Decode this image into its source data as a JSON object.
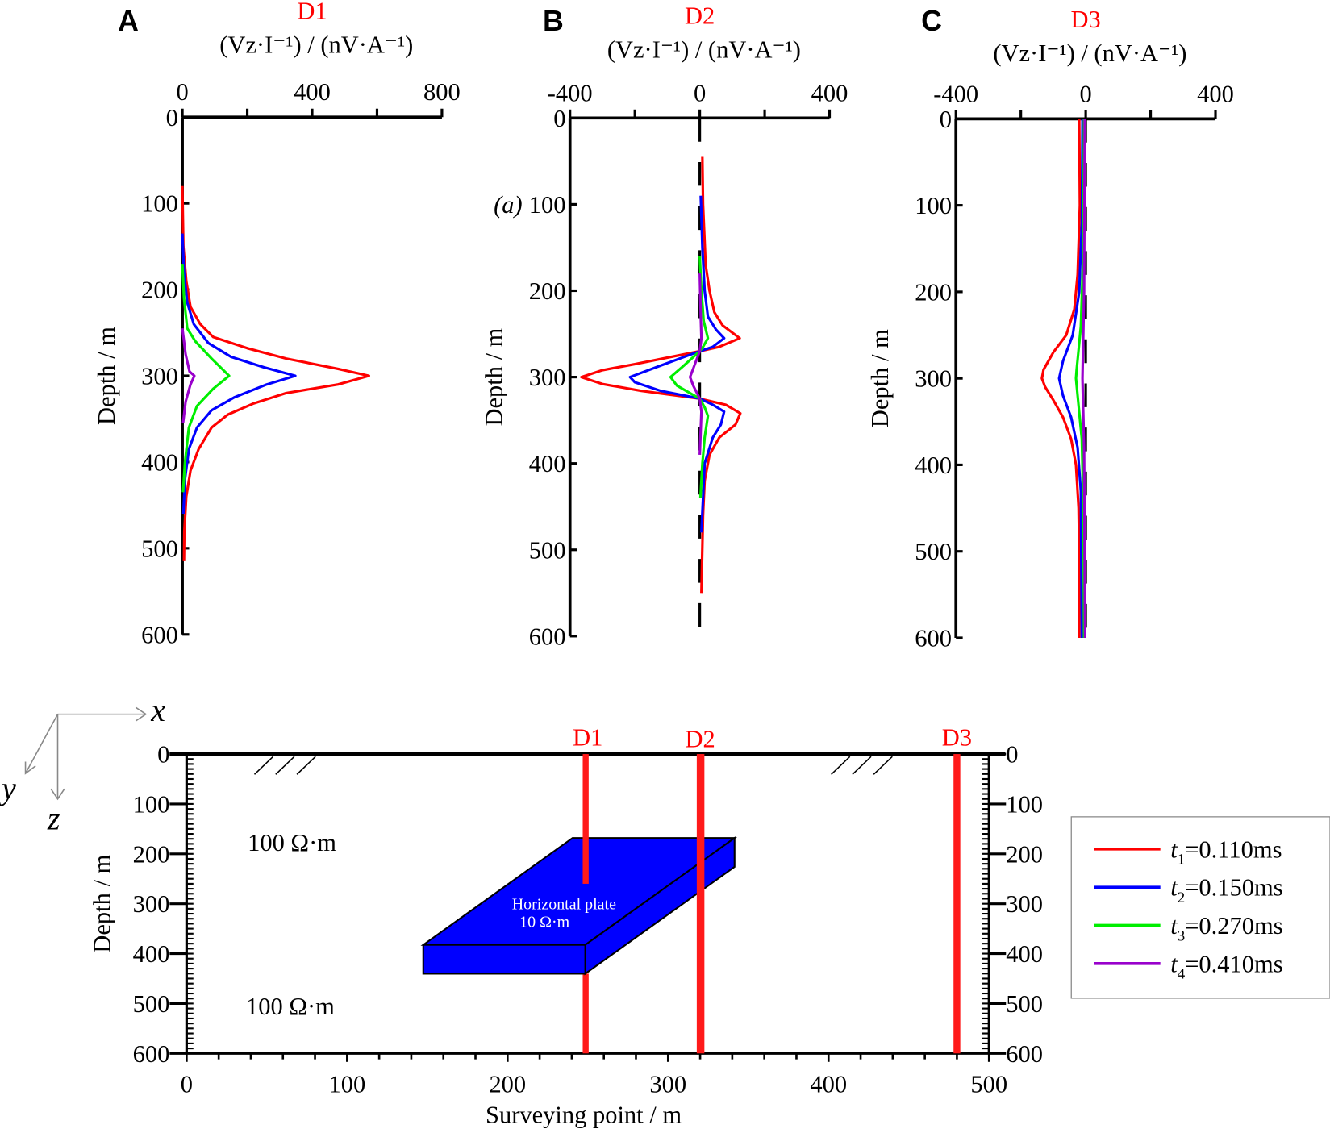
{
  "chart_data": [
    {
      "type": "line",
      "panel": "A",
      "title": "D1",
      "xlabel": "(Vz·I⁻¹) / (nV·A⁻¹)",
      "ylabel": "Depth / m",
      "xlim": [
        0,
        800
      ],
      "ylim": [
        0,
        600
      ],
      "xticks": [
        "0",
        "400",
        "800"
      ],
      "yticks": [
        "0",
        "100",
        "200",
        "300",
        "400",
        "500",
        "600"
      ],
      "zero_line": false,
      "series": [
        {
          "name": "t1=0.110ms",
          "color": "#ff0000",
          "points": [
            [
              0,
              80
            ],
            [
              3,
              150
            ],
            [
              12,
              190
            ],
            [
              25,
              220
            ],
            [
              55,
              240
            ],
            [
              95,
              255
            ],
            [
              200,
              268
            ],
            [
              320,
              280
            ],
            [
              480,
              292
            ],
            [
              575,
              300
            ],
            [
              480,
              310
            ],
            [
              320,
              320
            ],
            [
              220,
              332
            ],
            [
              140,
              345
            ],
            [
              90,
              360
            ],
            [
              50,
              385
            ],
            [
              25,
              410
            ],
            [
              12,
              440
            ],
            [
              6,
              480
            ],
            [
              5,
              515
            ]
          ]
        },
        {
          "name": "t2=0.150ms",
          "color": "#0000ff",
          "points": [
            [
              0,
              135
            ],
            [
              5,
              180
            ],
            [
              15,
              215
            ],
            [
              35,
              240
            ],
            [
              80,
              262
            ],
            [
              150,
              278
            ],
            [
              250,
              290
            ],
            [
              348,
              300
            ],
            [
              260,
              310
            ],
            [
              160,
              325
            ],
            [
              90,
              340
            ],
            [
              45,
              360
            ],
            [
              20,
              385
            ],
            [
              8,
              420
            ],
            [
              3,
              460
            ]
          ]
        },
        {
          "name": "t3=0.270ms",
          "color": "#00ee00",
          "points": [
            [
              0,
              170
            ],
            [
              5,
              210
            ],
            [
              15,
              245
            ],
            [
              40,
              260
            ],
            [
              90,
              280
            ],
            [
              144,
              300
            ],
            [
              95,
              315
            ],
            [
              45,
              335
            ],
            [
              20,
              360
            ],
            [
              8,
              400
            ],
            [
              2,
              435
            ]
          ]
        },
        {
          "name": "t4=0.410ms",
          "color": "#9900cc",
          "points": [
            [
              0,
              245
            ],
            [
              10,
              275
            ],
            [
              22,
              295
            ],
            [
              37,
              300
            ],
            [
              25,
              310
            ],
            [
              10,
              330
            ],
            [
              2,
              355
            ]
          ]
        }
      ]
    },
    {
      "type": "line",
      "panel": "B",
      "title": "D2",
      "xlabel": "(Vz·I⁻¹) / (nV·A⁻¹)",
      "ylabel": "Depth / m",
      "xlim": [
        -400,
        400
      ],
      "ylim": [
        0,
        600
      ],
      "xticks": [
        "-400",
        "0",
        "400"
      ],
      "yticks": [
        "0",
        "100",
        "200",
        "300",
        "400",
        "500",
        "600"
      ],
      "zero_line": true,
      "annotation": "(a)",
      "series": [
        {
          "name": "t1=0.110ms",
          "color": "#ff0000",
          "points": [
            [
              8,
              45
            ],
            [
              10,
              100
            ],
            [
              18,
              170
            ],
            [
              30,
              200
            ],
            [
              45,
              225
            ],
            [
              70,
              240
            ],
            [
              123,
              255
            ],
            [
              60,
              265
            ],
            [
              0,
              270
            ],
            [
              -200,
              285
            ],
            [
              -300,
              292
            ],
            [
              -365,
              300
            ],
            [
              -300,
              308
            ],
            [
              -180,
              316
            ],
            [
              0,
              325
            ],
            [
              80,
              332
            ],
            [
              125,
              342
            ],
            [
              110,
              355
            ],
            [
              60,
              370
            ],
            [
              30,
              390
            ],
            [
              15,
              420
            ],
            [
              10,
              460
            ],
            [
              5,
              550
            ]
          ]
        },
        {
          "name": "t2=0.150ms",
          "color": "#0000ff",
          "points": [
            [
              3,
              90
            ],
            [
              8,
              150
            ],
            [
              15,
              200
            ],
            [
              25,
              230
            ],
            [
              50,
              245
            ],
            [
              75,
              255
            ],
            [
              40,
              265
            ],
            [
              0,
              270
            ],
            [
              -130,
              288
            ],
            [
              -215,
              300
            ],
            [
              -200,
              306
            ],
            [
              -120,
              316
            ],
            [
              0,
              325
            ],
            [
              40,
              332
            ],
            [
              75,
              340
            ],
            [
              65,
              355
            ],
            [
              40,
              370
            ],
            [
              15,
              400
            ],
            [
              5,
              480
            ]
          ]
        },
        {
          "name": "t3=0.270ms",
          "color": "#00ee00",
          "points": [
            [
              0,
              160
            ],
            [
              5,
              200
            ],
            [
              12,
              235
            ],
            [
              25,
              255
            ],
            [
              10,
              265
            ],
            [
              0,
              270
            ],
            [
              -50,
              287
            ],
            [
              -90,
              300
            ],
            [
              -70,
              310
            ],
            [
              0,
              325
            ],
            [
              15,
              335
            ],
            [
              25,
              345
            ],
            [
              15,
              370
            ],
            [
              8,
              400
            ],
            [
              2,
              440
            ]
          ]
        },
        {
          "name": "t4=0.410ms",
          "color": "#9900cc",
          "points": [
            [
              0,
              180
            ],
            [
              3,
              230
            ],
            [
              5,
              255
            ],
            [
              0,
              270
            ],
            [
              -20,
              290
            ],
            [
              -30,
              300
            ],
            [
              -20,
              310
            ],
            [
              0,
              325
            ],
            [
              5,
              340
            ],
            [
              2,
              370
            ],
            [
              0,
              390
            ]
          ]
        }
      ]
    },
    {
      "type": "line",
      "panel": "C",
      "title": "D3",
      "xlabel": "(Vz·I⁻¹) / (nV·A⁻¹)",
      "ylabel": "Depth / m",
      "xlim": [
        -400,
        400
      ],
      "ylim": [
        0,
        600
      ],
      "xticks": [
        "-400",
        "0",
        "400"
      ],
      "yticks": [
        "0",
        "100",
        "200",
        "300",
        "400",
        "500",
        "600"
      ],
      "zero_line": true,
      "series": [
        {
          "name": "t1=0.110ms",
          "color": "#ff0000",
          "points": [
            [
              -20,
              0
            ],
            [
              -18,
              100
            ],
            [
              -25,
              180
            ],
            [
              -35,
              220
            ],
            [
              -60,
              250
            ],
            [
              -100,
              270
            ],
            [
              -130,
              290
            ],
            [
              -135,
              300
            ],
            [
              -125,
              310
            ],
            [
              -100,
              325
            ],
            [
              -70,
              345
            ],
            [
              -45,
              370
            ],
            [
              -30,
              400
            ],
            [
              -22,
              450
            ],
            [
              -20,
              500
            ],
            [
              -20,
              600
            ]
          ]
        },
        {
          "name": "t2=0.150ms",
          "color": "#0000ff",
          "points": [
            [
              -10,
              0
            ],
            [
              -12,
              120
            ],
            [
              -20,
              200
            ],
            [
              -40,
              250
            ],
            [
              -70,
              280
            ],
            [
              -82,
              300
            ],
            [
              -70,
              320
            ],
            [
              -45,
              345
            ],
            [
              -25,
              380
            ],
            [
              -15,
              430
            ],
            [
              -12,
              600
            ]
          ]
        },
        {
          "name": "t3=0.270ms",
          "color": "#00ee00",
          "points": [
            [
              -5,
              0
            ],
            [
              -7,
              150
            ],
            [
              -15,
              240
            ],
            [
              -28,
              290
            ],
            [
              -30,
              300
            ],
            [
              -25,
              320
            ],
            [
              -12,
              370
            ],
            [
              -7,
              450
            ],
            [
              -5,
              600
            ]
          ]
        },
        {
          "name": "t4=0.410ms",
          "color": "#9900cc",
          "points": [
            [
              -3,
              0
            ],
            [
              -5,
              200
            ],
            [
              -10,
              300
            ],
            [
              -5,
              380
            ],
            [
              -2,
              600
            ]
          ]
        }
      ]
    }
  ],
  "panel_letters": [
    "A",
    "B",
    "C"
  ],
  "model": {
    "xlabel": "Surveying point / m",
    "ylabel": "Depth / m",
    "xticks": [
      "0",
      "100",
      "200",
      "300",
      "400",
      "500"
    ],
    "yticks": [
      "0",
      "100",
      "200",
      "300",
      "400",
      "500",
      "600"
    ],
    "boreholes": [
      {
        "name": "D1",
        "x": 250
      },
      {
        "name": "D2",
        "x": 320
      },
      {
        "name": "D3",
        "x": 480
      }
    ],
    "background_top": "100 Ω·m",
    "background_bottom": "100 Ω·m",
    "plate_label": "Horizontal plate",
    "plate_res": "10 Ω·m",
    "axes": {
      "x": "x",
      "y": "y",
      "z": "z"
    }
  },
  "legend": [
    {
      "sym": "t",
      "sub": "1",
      "val": "=0.110ms",
      "color": "#ff0000"
    },
    {
      "sym": "t",
      "sub": "2",
      "val": "=0.150ms",
      "color": "#0000ff"
    },
    {
      "sym": "t",
      "sub": "3",
      "val": "=0.270ms",
      "color": "#00ee00"
    },
    {
      "sym": "t",
      "sub": "4",
      "val": "=0.410ms",
      "color": "#9900cc"
    }
  ]
}
